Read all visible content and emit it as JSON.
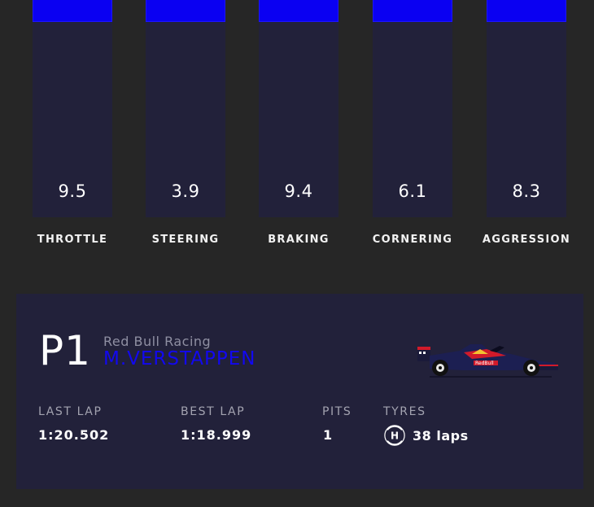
{
  "chart_data": {
    "type": "bar",
    "categories": [
      "THROTTLE",
      "STEERING",
      "BRAKING",
      "CORNERING",
      "AGGRESSION"
    ],
    "values": [
      9.5,
      3.9,
      9.4,
      6.1,
      8.3
    ],
    "value_labels": [
      "9.5",
      "3.9",
      "9.4",
      "6.1",
      "8.3"
    ],
    "ylim": [
      0,
      10
    ],
    "grid": false,
    "bar_color": "#0a00f2",
    "track_color": "#22213a"
  },
  "driver": {
    "position": "P1",
    "team": "Red Bull Racing",
    "name": "M.VERSTAPPEN",
    "name_color": "#1208f0"
  },
  "stats": {
    "last_lap_label": "LAST LAP",
    "last_lap_value": "1:20.502",
    "best_lap_label": "BEST LAP",
    "best_lap_value": "1:18.999",
    "pits_label": "PITS",
    "pits_value": "1",
    "tyres_label": "TYRES",
    "tyre_compound": "H",
    "tyre_laps": "38 laps"
  },
  "icons": {
    "tyre": "hard-tyre-icon",
    "car": "red-bull-car-icon"
  }
}
